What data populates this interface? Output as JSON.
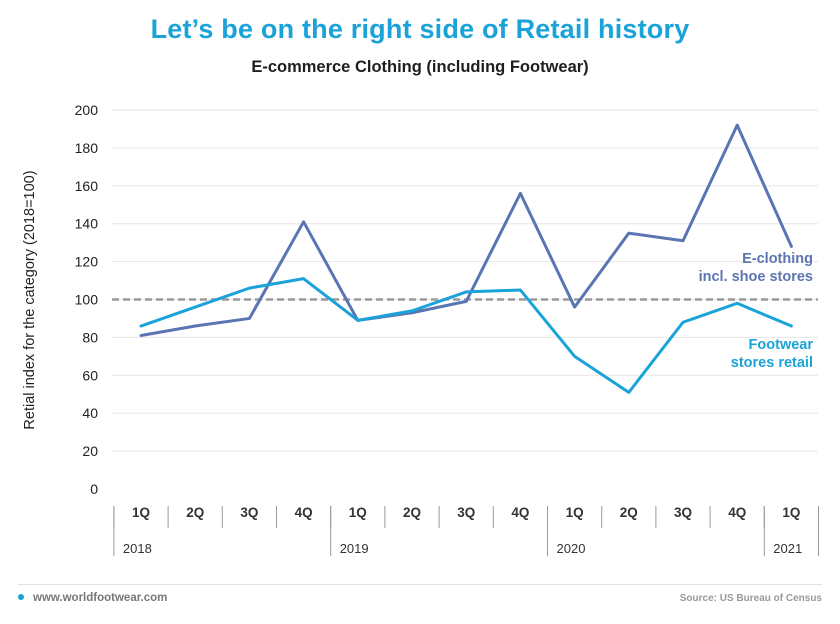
{
  "header": {
    "title": "Let’s be on the right side of Retail history",
    "subtitle": "E-commerce Clothing (including Footwear)"
  },
  "footer": {
    "website": "www.worldfootwear.com",
    "source": "Source: US Bureau of Census"
  },
  "colors": {
    "title": "#1aa3d8",
    "ecloth": "#5b75b3",
    "footwear": "#1aa3d8",
    "reference": "#9a9a9a",
    "grid": "#e6e6e6"
  },
  "chart_data": {
    "type": "line",
    "ylabel": "Retial index for the category (2018=100)",
    "ylim": [
      0,
      200
    ],
    "yticks": [
      0,
      20,
      40,
      60,
      80,
      100,
      120,
      140,
      160,
      180,
      200
    ],
    "grid": true,
    "categories": [
      "1Q",
      "2Q",
      "3Q",
      "4Q",
      "1Q",
      "2Q",
      "3Q",
      "4Q",
      "1Q",
      "2Q",
      "3Q",
      "4Q",
      "1Q"
    ],
    "year_groups": [
      {
        "label": "2018",
        "count": 4
      },
      {
        "label": "2019",
        "count": 4
      },
      {
        "label": "2020",
        "count": 4
      },
      {
        "label": "2021",
        "count": 1
      }
    ],
    "reference_line": 100,
    "series": [
      {
        "key": "ecloth",
        "name": "E-clothing incl. shoe stores",
        "label_lines": [
          "E-clothing",
          "incl. shoe stores"
        ],
        "values": [
          81,
          86,
          90,
          141,
          89,
          93,
          99,
          156,
          96,
          135,
          131,
          192,
          128
        ]
      },
      {
        "key": "footwear",
        "name": "Footwear stores retail",
        "label_lines": [
          "Footwear",
          "stores retail"
        ],
        "values": [
          86,
          96,
          106,
          111,
          89,
          94,
          104,
          105,
          70,
          51,
          88,
          98,
          86
        ]
      }
    ]
  }
}
